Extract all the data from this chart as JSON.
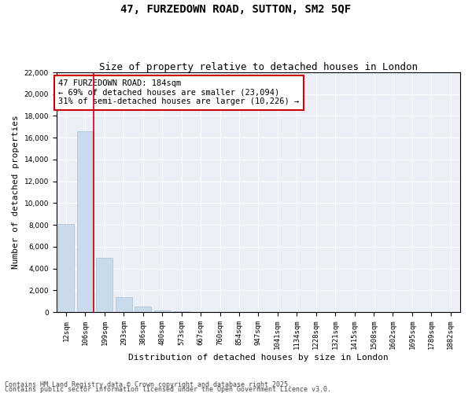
{
  "title": "47, FURZEDOWN ROAD, SUTTON, SM2 5QF",
  "subtitle": "Size of property relative to detached houses in London",
  "xlabel": "Distribution of detached houses by size in London",
  "ylabel": "Number of detached properties",
  "categories": [
    "12sqm",
    "106sqm",
    "199sqm",
    "293sqm",
    "386sqm",
    "480sqm",
    "573sqm",
    "667sqm",
    "760sqm",
    "854sqm",
    "947sqm",
    "1041sqm",
    "1134sqm",
    "1228sqm",
    "1321sqm",
    "1415sqm",
    "1508sqm",
    "1602sqm",
    "1695sqm",
    "1789sqm",
    "1882sqm"
  ],
  "values": [
    8100,
    16600,
    5000,
    1400,
    500,
    150,
    50,
    10,
    5,
    2,
    0,
    0,
    0,
    0,
    0,
    0,
    0,
    0,
    0,
    0,
    0
  ],
  "bar_color": "#c9daea",
  "bar_edge_color": "#a8c0d4",
  "vline_x_index": 1,
  "vline_color": "#cc0000",
  "annotation_text": "47 FURZEDOWN ROAD: 184sqm\n← 69% of detached houses are smaller (23,094)\n31% of semi-detached houses are larger (10,226) →",
  "annotation_box_color": "#ffffff",
  "annotation_box_edge": "#cc0000",
  "ylim": [
    0,
    22000
  ],
  "yticks": [
    0,
    2000,
    4000,
    6000,
    8000,
    10000,
    12000,
    14000,
    16000,
    18000,
    20000,
    22000
  ],
  "background_color": "#ffffff",
  "plot_bg_color": "#eaf0f6",
  "grid_color": "#ffffff",
  "footer_line1": "Contains HM Land Registry data © Crown copyright and database right 2025.",
  "footer_line2": "Contains public sector information licensed under the Open Government Licence v3.0.",
  "title_fontsize": 10,
  "subtitle_fontsize": 9,
  "tick_fontsize": 6.5,
  "label_fontsize": 8,
  "annotation_fontsize": 7.5,
  "footer_fontsize": 6
}
